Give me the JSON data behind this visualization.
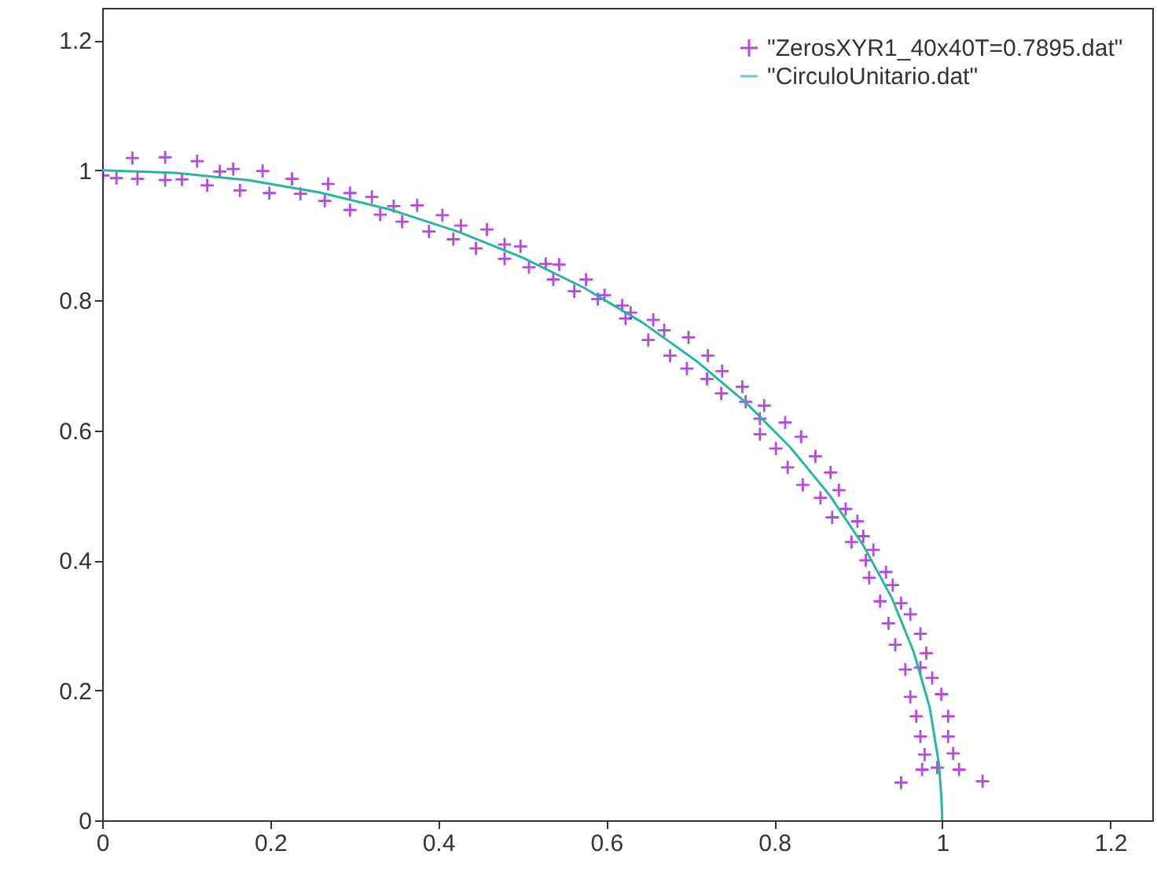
{
  "chart_data": {
    "type": "scatter",
    "xlim": [
      0,
      1.25
    ],
    "ylim": [
      0,
      1.25
    ],
    "xticks": [
      0,
      0.2,
      0.4,
      0.6,
      0.8,
      1,
      1.2
    ],
    "yticks": [
      0,
      0.2,
      0.4,
      0.6,
      0.8,
      1,
      1.2
    ],
    "legend": "top right",
    "series": [
      {
        "name": "\"ZerosXYR1_40x40T=0.7895.dat\"",
        "marker": "cross",
        "color": "#9400d3",
        "x": [
          0.001,
          0.017,
          0.036,
          0.042,
          0.075,
          0.075,
          0.095,
          0.113,
          0.125,
          0.14,
          0.156,
          0.164,
          0.191,
          0.199,
          0.226,
          0.236,
          0.269,
          0.265,
          0.295,
          0.295,
          0.321,
          0.331,
          0.347,
          0.357,
          0.375,
          0.389,
          0.405,
          0.418,
          0.427,
          0.445,
          0.458,
          0.479,
          0.479,
          0.498,
          0.508,
          0.528,
          0.544,
          0.537,
          0.562,
          0.576,
          0.59,
          0.598,
          0.619,
          0.623,
          0.629,
          0.656,
          0.65,
          0.669,
          0.698,
          0.676,
          0.696,
          0.721,
          0.72,
          0.738,
          0.737,
          0.762,
          0.766,
          0.788,
          0.783,
          0.813,
          0.832,
          0.783,
          0.802,
          0.849,
          0.816,
          0.867,
          0.834,
          0.877,
          0.855,
          0.885,
          0.869,
          0.899,
          0.906,
          0.892,
          0.918,
          0.909,
          0.913,
          0.933,
          0.941,
          0.926,
          0.951,
          0.962,
          0.936,
          0.974,
          0.944,
          0.981,
          0.956,
          0.974,
          0.988,
          0.962,
          0.999,
          0.969,
          1.007,
          0.974,
          1.007,
          0.979,
          1.013,
          0.976,
          0.994,
          1.02,
          0.951,
          1.048
        ],
        "values": [
          0.992,
          0.988,
          1.019,
          0.987,
          1.02,
          0.985,
          0.986,
          1.014,
          0.977,
          0.998,
          1.002,
          0.969,
          0.999,
          0.965,
          0.987,
          0.964,
          0.979,
          0.953,
          0.965,
          0.939,
          0.959,
          0.932,
          0.945,
          0.921,
          0.946,
          0.906,
          0.931,
          0.894,
          0.915,
          0.88,
          0.909,
          0.886,
          0.864,
          0.883,
          0.851,
          0.856,
          0.855,
          0.832,
          0.814,
          0.832,
          0.802,
          0.808,
          0.792,
          0.772,
          0.781,
          0.77,
          0.739,
          0.754,
          0.743,
          0.715,
          0.695,
          0.715,
          0.679,
          0.691,
          0.657,
          0.667,
          0.644,
          0.638,
          0.618,
          0.612,
          0.59,
          0.594,
          0.572,
          0.56,
          0.543,
          0.535,
          0.516,
          0.508,
          0.496,
          0.479,
          0.466,
          0.46,
          0.437,
          0.428,
          0.416,
          0.4,
          0.373,
          0.382,
          0.362,
          0.337,
          0.334,
          0.317,
          0.303,
          0.287,
          0.27,
          0.257,
          0.232,
          0.235,
          0.219,
          0.19,
          0.194,
          0.16,
          0.16,
          0.129,
          0.129,
          0.101,
          0.103,
          0.078,
          0.081,
          0.078,
          0.058,
          0.06
        ]
      },
      {
        "name": "\"CirculoUnitario.dat\"",
        "type": "line",
        "line_style": "solid",
        "color": "#2ab5a0",
        "x": [
          0,
          0.087,
          0.174,
          0.259,
          0.342,
          0.423,
          0.5,
          0.574,
          0.643,
          0.707,
          0.766,
          0.819,
          0.866,
          0.906,
          0.94,
          0.966,
          0.985,
          0.996,
          0.999,
          1
        ],
        "values": [
          1,
          0.996,
          0.985,
          0.966,
          0.94,
          0.906,
          0.866,
          0.819,
          0.766,
          0.707,
          0.643,
          0.574,
          0.5,
          0.423,
          0.342,
          0.259,
          0.174,
          0.087,
          0.035,
          0
        ]
      }
    ]
  }
}
